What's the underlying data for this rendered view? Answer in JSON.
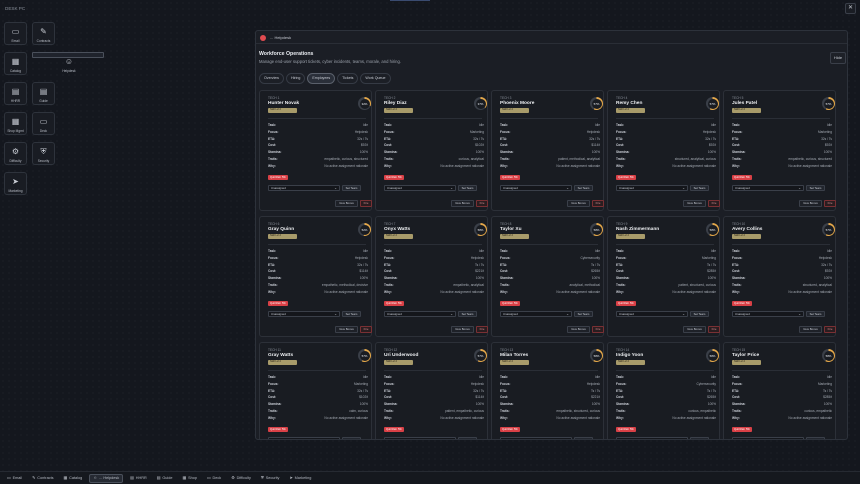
{
  "desktop": {
    "title": "DESK PC",
    "icons": [
      {
        "label": "Email",
        "glyph": "▭",
        "icon": "email-icon"
      },
      {
        "label": "Contracts",
        "glyph": "✎",
        "icon": "contracts-icon"
      },
      {
        "label": "Catalog",
        "glyph": "▦",
        "icon": "catalog-icon"
      },
      {
        "label": "Helpdesk",
        "glyph": "☺",
        "icon": "helpdesk-icon"
      },
      {
        "label": "HHRR",
        "glyph": "▤",
        "icon": "hhrr-icon"
      },
      {
        "label": "Guide",
        "glyph": "▤",
        "icon": "guide-icon"
      },
      {
        "label": "Shop Mgmt",
        "glyph": "▦",
        "icon": "shop-icon"
      },
      {
        "label": "Deck",
        "glyph": "▭",
        "icon": "deck-icon"
      },
      {
        "label": "Difficulty",
        "glyph": "⚙",
        "icon": "difficulty-icon"
      },
      {
        "label": "Security",
        "glyph": "⛨",
        "icon": "security-icon"
      },
      {
        "label": "Marketing",
        "glyph": "➤",
        "icon": "marketing-icon"
      }
    ]
  },
  "window": {
    "title": "... Helpdesk",
    "header_title": "Workforce Operations",
    "header_subtitle": "Manage end-user support tickets, cyber incidents, teams, morale, and hiring.",
    "hide_label": "Hide"
  },
  "tabs": [
    "Overview",
    "Hiring",
    "Employees",
    "Tickets",
    "Work Queue"
  ],
  "active_tab": 2,
  "labels": {
    "task": "Task:",
    "focus": "Focus:",
    "eta": "ETA:",
    "cost": "Cost:",
    "stamina": "Stamina:",
    "traits": "Traits:",
    "why": "Why:",
    "select": "Unassigned",
    "set_team": "Set Team",
    "give_bonus": "Give Bonus",
    "fire": "Fire"
  },
  "employees": [
    {
      "id": "TECH 1",
      "name": "Hunter Novak",
      "badge": "Skill Lvl 2",
      "pct": "32%",
      "p": 32,
      "task": "Idle",
      "focus": "Helpdesk",
      "eta": "32s / Ts",
      "cost": "$92/t",
      "stamina": "100%",
      "traits": "empathetic, curious, structured",
      "why": "No active assignment rationale",
      "quit": "Quit Risk: 5%"
    },
    {
      "id": "TECH 2",
      "name": "Riley Diaz",
      "badge": "Skill Lvl 2",
      "pct": "37%",
      "p": 37,
      "task": "Idle",
      "focus": "Marketing",
      "eta": "32s / Ts",
      "cost": "$102/t",
      "stamina": "100%",
      "traits": "curious, analytical",
      "why": "No active assignment rationale",
      "quit": "Quit Risk: 5%"
    },
    {
      "id": "TECH 3",
      "name": "Phoenix Moore",
      "badge": "Skill Lvl 2",
      "pct": "57%",
      "p": 57,
      "task": "Idle",
      "focus": "Helpdesk",
      "eta": "32s / Ts",
      "cost": "$114/t",
      "stamina": "100%",
      "traits": "patient, methodical, analytical",
      "why": "No active assignment rationale",
      "quit": "Quit Risk: 5%"
    },
    {
      "id": "TECH 4",
      "name": "Remy Chen",
      "badge": "Skill Lvl 2",
      "pct": "57%",
      "p": 57,
      "task": "Idle",
      "focus": "Helpdesk",
      "eta": "32s / Ts",
      "cost": "$92/t",
      "stamina": "100%",
      "traits": "structured, analytical, curious",
      "why": "No active assignment rationale",
      "quit": "Quit Risk: 5%"
    },
    {
      "id": "TECH 5",
      "name": "Jules Patel",
      "badge": "Skill Lvl 2",
      "pct": "57%",
      "p": 57,
      "task": "Idle",
      "focus": "Marketing",
      "eta": "32s / Ts",
      "cost": "$92/t",
      "stamina": "100%",
      "traits": "empathetic, curious, structured",
      "why": "No active assignment rationale",
      "quit": "Quit Risk: 5%"
    },
    {
      "id": "TECH 6",
      "name": "Gray Quinn",
      "badge": "Skill Lvl 2",
      "pct": "52%",
      "p": 52,
      "task": "Idle",
      "focus": "Helpdesk",
      "eta": "32s / Ts",
      "cost": "$114/t",
      "stamina": "100%",
      "traits": "empathetic, methodical, decisive",
      "why": "No active assignment rationale",
      "quit": "Quit Risk: 5%"
    },
    {
      "id": "TECH 7",
      "name": "Onyx Watts",
      "badge": "Skill Lvl 2",
      "pct": "58%",
      "p": 58,
      "task": "Idle",
      "focus": "Helpdesk",
      "eta": "Ts / Ts",
      "cost": "$221/t",
      "stamina": "100%",
      "traits": "empathetic, analytical",
      "why": "No active assignment rationale",
      "quit": "Quit Risk: 5%"
    },
    {
      "id": "TECH 8",
      "name": "Taylor Xu",
      "badge": "Skill Lvl 2",
      "pct": "58%",
      "p": 58,
      "task": "Idle",
      "focus": "Cybersecurity",
      "eta": "Ts / Ts",
      "cost": "$265/t",
      "stamina": "100%",
      "traits": "analytical, methodical",
      "why": "No active assignment rationale",
      "quit": "Quit Risk: 5%"
    },
    {
      "id": "TECH 9",
      "name": "Nash Zimmermann",
      "badge": "Skill Lvl 2",
      "pct": "58%",
      "p": 58,
      "task": "Idle",
      "focus": "Marketing",
      "eta": "Ts / Ts",
      "cost": "$285/t",
      "stamina": "100%",
      "traits": "patient, structured, curious",
      "why": "No active assignment rationale",
      "quit": "Quit Risk: 5%"
    },
    {
      "id": "TECH 10",
      "name": "Avery Collins",
      "badge": "Skill Lvl 2",
      "pct": "57%",
      "p": 57,
      "task": "Idle",
      "focus": "Helpdesk",
      "eta": "32s / Ts",
      "cost": "$92/t",
      "stamina": "100%",
      "traits": "structured, analytical",
      "why": "No active assignment rationale",
      "quit": "Quit Risk: 5%"
    },
    {
      "id": "TECH 11",
      "name": "Gray Watts",
      "badge": "Skill Lvl 2",
      "pct": "57%",
      "p": 57,
      "task": "Idle",
      "focus": "Marketing",
      "eta": "32s / Ts",
      "cost": "$102/t",
      "stamina": "100%",
      "traits": "calm, curious",
      "why": "No active assignment rationale",
      "quit": "Quit Risk: 5%"
    },
    {
      "id": "TECH 12",
      "name": "Uri Underwood",
      "badge": "Skill Lvl 2",
      "pct": "57%",
      "p": 57,
      "task": "Idle",
      "focus": "Helpdesk",
      "eta": "32s / Ts",
      "cost": "$114/t",
      "stamina": "100%",
      "traits": "patient, empathetic, curious",
      "why": "No active assignment rationale",
      "quit": "Quit Risk: 5%"
    },
    {
      "id": "TECH 13",
      "name": "Milan Torres",
      "badge": "Skill Lvl 2",
      "pct": "58%",
      "p": 58,
      "task": "Idle",
      "focus": "Helpdesk",
      "eta": "Ts / Ts",
      "cost": "$221/t",
      "stamina": "100%",
      "traits": "empathetic, structured, curious",
      "why": "No active assignment rationale",
      "quit": "Quit Risk: 5%"
    },
    {
      "id": "TECH 14",
      "name": "Indigo Yoon",
      "badge": "Skill Lvl 2",
      "pct": "58%",
      "p": 58,
      "task": "Idle",
      "focus": "Cybersecurity",
      "eta": "Ts / Ts",
      "cost": "$265/t",
      "stamina": "100%",
      "traits": "curious, empathetic",
      "why": "No active assignment rationale",
      "quit": "Quit Risk: 5%"
    },
    {
      "id": "TECH 15",
      "name": "Taylor Price",
      "badge": "Skill Lvl 2",
      "pct": "58%",
      "p": 58,
      "task": "Idle",
      "focus": "Marketing",
      "eta": "Ts / Ts",
      "cost": "$285/t",
      "stamina": "100%",
      "traits": "curious, empathetic",
      "why": "No active assignment rationale",
      "quit": "Quit Risk: 5%"
    }
  ],
  "taskbar": [
    {
      "label": "Email",
      "glyph": "▭",
      "icon": "email-icon"
    },
    {
      "label": "Contracts",
      "glyph": "✎",
      "icon": "contracts-icon"
    },
    {
      "label": "Catalog",
      "glyph": "▦",
      "icon": "catalog-icon"
    },
    {
      "label": "... Helpdesk",
      "glyph": "☺",
      "icon": "helpdesk-icon"
    },
    {
      "label": "HHRR",
      "glyph": "▤",
      "icon": "hhrr-icon"
    },
    {
      "label": "Guide",
      "glyph": "▤",
      "icon": "guide-icon"
    },
    {
      "label": "Shop",
      "glyph": "▦",
      "icon": "shop-icon"
    },
    {
      "label": "Deck",
      "glyph": "▭",
      "icon": "deck-icon"
    },
    {
      "label": "Difficulty",
      "glyph": "⚙",
      "icon": "difficulty-icon"
    },
    {
      "label": "Security",
      "glyph": "⛨",
      "icon": "security-icon"
    },
    {
      "label": "Marketing",
      "glyph": "➤",
      "icon": "marketing-icon"
    }
  ],
  "taskbar_active": 3
}
